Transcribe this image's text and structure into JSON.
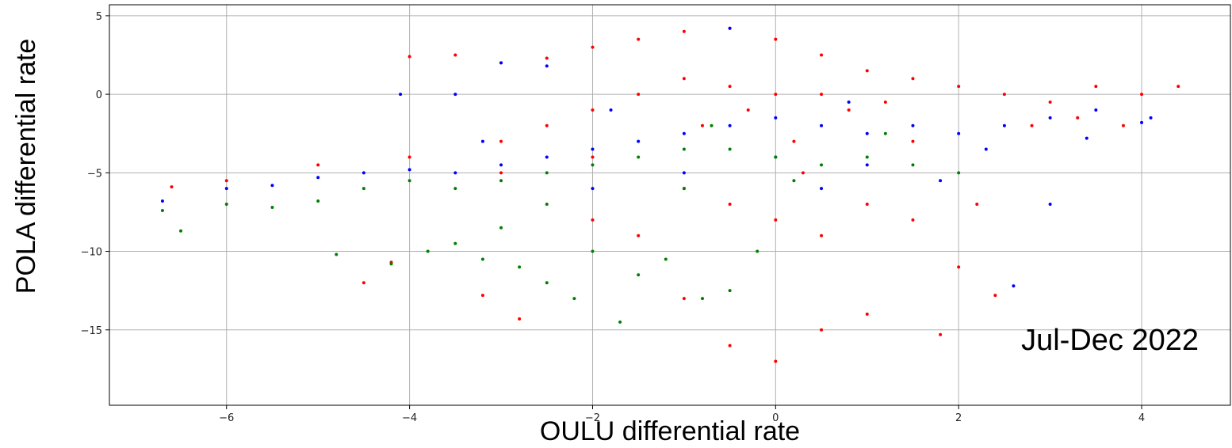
{
  "chart_data": {
    "type": "scatter",
    "xlabel": "OULU differential rate",
    "ylabel": "POLA differential rate",
    "annotation": "Jul-Dec  2022",
    "xlim": [
      -7.28,
      4.97
    ],
    "ylim": [
      -19.8,
      5.7
    ],
    "xticks": [
      {
        "value": -6,
        "label": "−6"
      },
      {
        "value": -4,
        "label": "−4"
      },
      {
        "value": -2,
        "label": "−2"
      },
      0,
      2,
      4
    ],
    "yticks": [
      5,
      0,
      {
        "value": -5,
        "label": "−5"
      },
      {
        "value": -10,
        "label": "−10"
      },
      {
        "value": -15,
        "label": "−15"
      }
    ],
    "grid": true,
    "series": [
      {
        "color": "#ff0000",
        "x": [
          -3.5,
          -3,
          -2.5,
          -2,
          -1.5,
          -1,
          -0.5,
          0,
          0.5,
          1,
          1.5,
          2,
          2.5,
          3,
          3.5,
          4,
          4.4,
          -4,
          -1,
          -0.5,
          0,
          0.5,
          -0.3,
          0.8,
          1.2,
          -1.5,
          -2,
          -2.5,
          -3,
          -4,
          -5,
          -6,
          -6.6,
          -1,
          -0.5,
          0,
          0.5,
          1,
          1.5,
          2,
          -1.5,
          -2,
          -2.8,
          -1,
          -0.5,
          0,
          0.5,
          1,
          1.8,
          2.4,
          -3.2,
          -4.5,
          -3,
          -2,
          0.2,
          1.5,
          2.8,
          3.3,
          -0.8,
          0.3,
          -4.2,
          2.2,
          3.8
        ],
        "values": [
          2.5,
          2,
          2.3,
          3,
          3.5,
          4,
          4.2,
          3.5,
          2.5,
          1.5,
          1,
          0.5,
          0,
          -0.5,
          0.5,
          0,
          0.5,
          2.4,
          1,
          0.5,
          0,
          0,
          -1,
          -1,
          -0.5,
          0,
          -1,
          -2,
          -3,
          -4,
          -4.5,
          -5.5,
          -5.9,
          -6,
          -7,
          -8,
          -9,
          -7,
          -8,
          -11,
          -9,
          -8,
          -14.3,
          -13,
          -16,
          -17,
          -15,
          -14,
          -15.3,
          -12.8,
          -12.8,
          -12,
          -5,
          -4,
          -3,
          -3,
          -2,
          -1.5,
          -2,
          -5,
          -10.7,
          -7,
          -2
        ]
      },
      {
        "color": "#0000ff",
        "x": [
          -6.7,
          -6,
          -5.5,
          -5,
          -4.5,
          -4,
          -3.5,
          -3,
          -2.5,
          -2,
          -1.5,
          -1,
          -0.5,
          0,
          0.5,
          1,
          1.5,
          2,
          2.5,
          3,
          3.5,
          4,
          4.1,
          -0.5,
          -3,
          -2.5,
          -4.1,
          -3.5,
          0,
          1,
          1.8,
          2.6,
          3,
          -1,
          -2,
          0.5,
          2.3,
          3.4,
          -3.2,
          -1.8,
          0.8
        ],
        "values": [
          -6.8,
          -6,
          -5.8,
          -5.3,
          -5,
          -4.8,
          -5,
          -4.5,
          -4,
          -3.5,
          -3,
          -2.5,
          -2,
          -1.5,
          -2,
          -2.5,
          -2,
          -2.5,
          -2,
          -1.5,
          -1,
          -1.8,
          -1.5,
          4.2,
          2,
          1.8,
          0,
          0,
          -4,
          -4.5,
          -5.5,
          -12.2,
          -7,
          -5,
          -6,
          -6,
          -3.5,
          -2.8,
          -3,
          -1,
          -0.5
        ]
      },
      {
        "color": "#008000",
        "x": [
          -6.7,
          -6.5,
          -6,
          -5.5,
          -5,
          -4.5,
          -4,
          -3.5,
          -3,
          -2.5,
          -2,
          -1.5,
          -1,
          -0.5,
          0,
          0.5,
          1,
          1.5,
          2,
          -4.8,
          -4.2,
          -3.8,
          -3.2,
          -2.8,
          -2.5,
          -2,
          -1.5,
          -1.2,
          -0.8,
          -0.5,
          -1.7,
          -2.2,
          -0.2,
          -1,
          0.2,
          -0.7,
          1.2,
          -3,
          -3.5,
          -2.5
        ],
        "values": [
          -7.4,
          -8.7,
          -7,
          -7.2,
          -6.8,
          -6,
          -5.5,
          -6,
          -5.5,
          -5,
          -4.5,
          -4,
          -3.5,
          -3.5,
          -4,
          -4.5,
          -4,
          -4.5,
          -5,
          -10.2,
          -10.8,
          -10,
          -10.5,
          -11,
          -12,
          -10,
          -11.5,
          -10.5,
          -13,
          -12.5,
          -14.5,
          -13,
          -10,
          -6,
          -5.5,
          -2,
          -2.5,
          -8.5,
          -9.5,
          -7
        ]
      }
    ]
  }
}
